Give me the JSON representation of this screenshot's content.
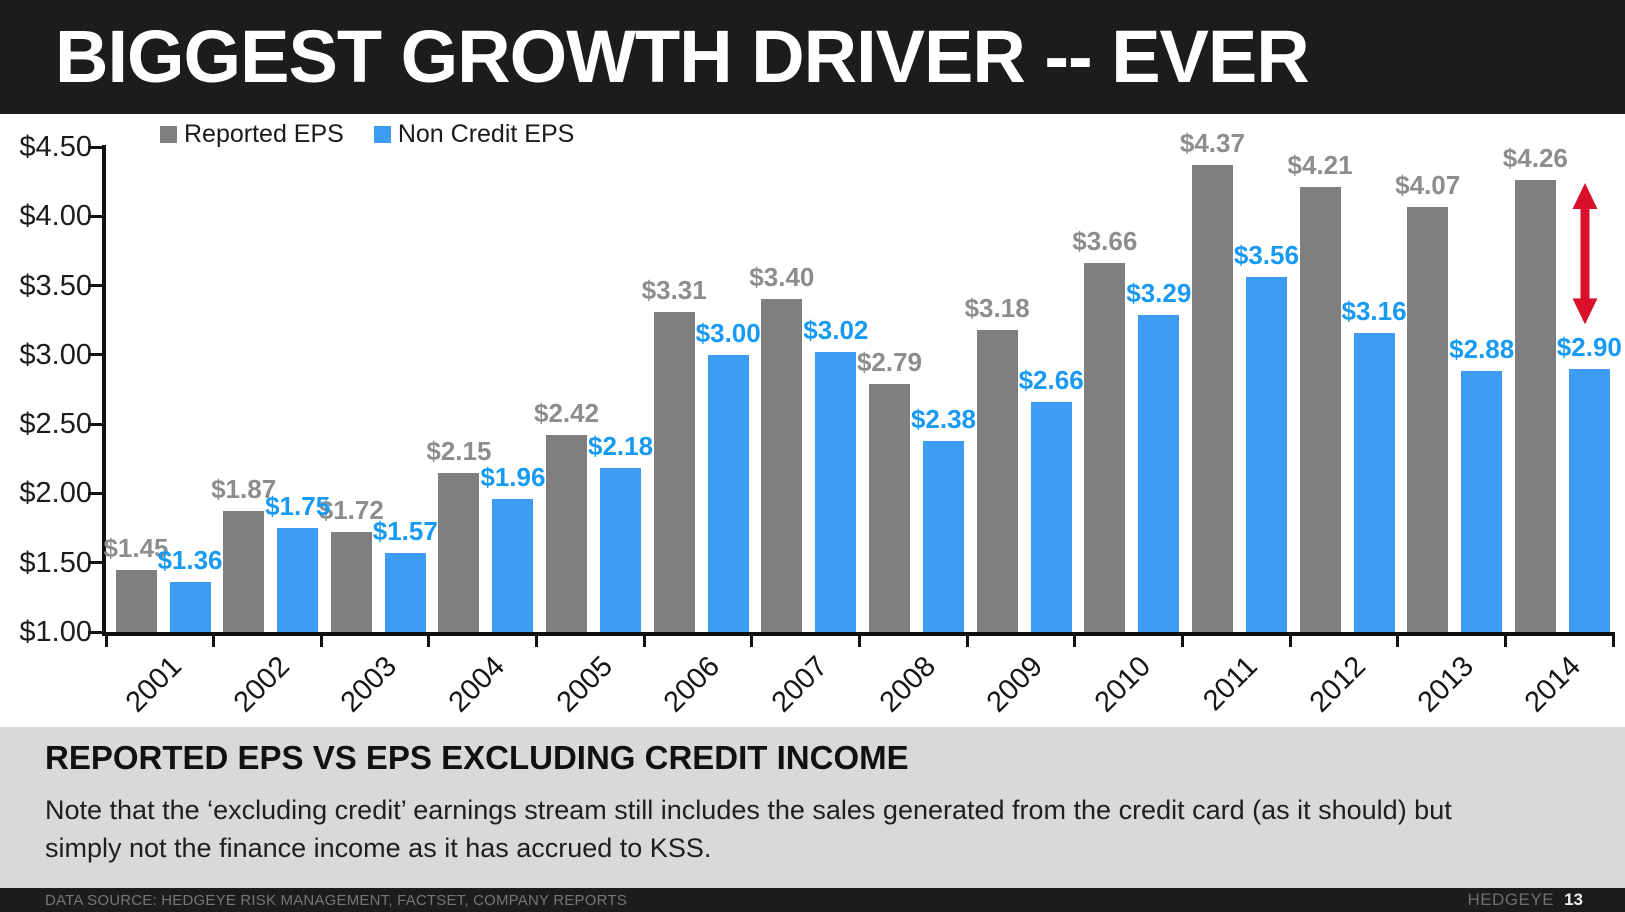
{
  "slide": {
    "title": "BIGGEST GROWTH DRIVER -- EVER",
    "summary": {
      "heading": "REPORTED EPS VS EPS EXCLUDING CREDIT INCOME",
      "note": "Note that the ‘excluding credit’ earnings stream still includes the sales generated from the credit card (as it should) but simply not the finance income as it has accrued to KSS."
    },
    "footer": {
      "source": "DATA SOURCE: HEDGEYE RISK MANAGEMENT, FACTSET, COMPANY REPORTS",
      "brand": "HEDGEYE",
      "page": "13"
    }
  },
  "chart_data": {
    "type": "bar",
    "categories": [
      "2001",
      "2002",
      "2003",
      "2004",
      "2005",
      "2006",
      "2007",
      "2008",
      "2009",
      "2010",
      "2011",
      "2012",
      "2013",
      "2014"
    ],
    "series": [
      {
        "name": "Reported EPS",
        "bar_color": "#7f7f7f",
        "label_color": "#8d8d8d",
        "values": [
          1.45,
          1.87,
          1.72,
          2.15,
          2.42,
          3.31,
          3.4,
          2.79,
          3.18,
          3.66,
          4.37,
          4.21,
          4.07,
          4.26
        ]
      },
      {
        "name": "Non Credit EPS",
        "bar_color": "#3e9df3",
        "label_color": "#189af2",
        "values": [
          1.36,
          1.75,
          1.57,
          1.96,
          2.18,
          3.0,
          3.02,
          2.38,
          2.66,
          3.29,
          3.56,
          3.16,
          2.88,
          2.9
        ]
      }
    ],
    "value_prefix": "$",
    "value_decimals": 2,
    "y_axis": {
      "min": 1.0,
      "max": 4.5,
      "tick_step": 0.5,
      "tick_labels": [
        "$1.00",
        "$1.50",
        "$2.00",
        "$2.50",
        "$3.00",
        "$3.50",
        "$4.00",
        "$4.50"
      ]
    },
    "grid": false,
    "legend_position": "top-left",
    "annotation": {
      "type": "vertical-double-arrow",
      "color": "#d8102c",
      "category": "2014",
      "over_series": "Non Credit EPS",
      "from_value": 4.24,
      "to_value": 3.22
    }
  }
}
